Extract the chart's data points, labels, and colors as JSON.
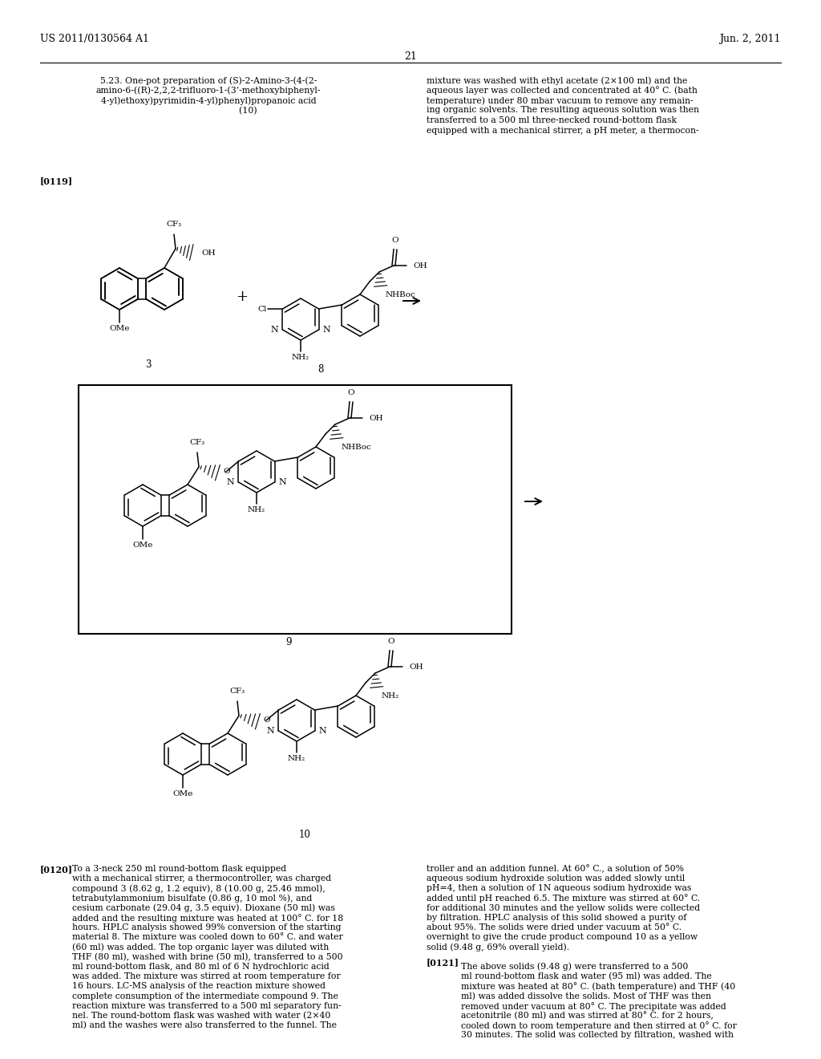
{
  "page_header_left": "US 2011/0130564 A1",
  "page_header_right": "Jun. 2, 2011",
  "page_number": "21",
  "section_title_lines": [
    "5.23. One-pot preparation of (S)-2-Amino-3-(4-(2-",
    "amino-6-((R)-2,2,2-trifluoro-1-(3’-methoxybiphenyl-",
    "4-yl)ethoxy)pyrimidin-4-yl)phenyl)propanoic acid",
    "                            (10)"
  ],
  "right_col_1_lines": [
    "mixture was washed with ethyl acetate (2×100 ml) and the",
    "aqueous layer was collected and concentrated at 40° C. (bath",
    "temperature) under 80 mbar vacuum to remove any remain-",
    "ing organic solvents. The resulting aqueous solution was then",
    "transferred to a 500 ml three-necked round-bottom flask",
    "equipped with a mechanical stirrer, a pH meter, a thermocon-"
  ],
  "para_0119": "[0119]",
  "para_0120": "[0120]",
  "para_0121": "[0121]",
  "left_col_2_lines": [
    "To a 3-neck 250 ml round-bottom flask equipped",
    "with a mechanical stirrer, a thermocontroller, was charged",
    "compound 3 (8.62 g, 1.2 equiv), 8 (10.00 g, 25.46 mmol),",
    "tetrabutylammonium bisulfate (0.86 g, 10 mol %), and",
    "cesium carbonate (29.04 g, 3.5 equiv). Dioxane (50 ml) was",
    "added and the resulting mixture was heated at 100° C. for 18",
    "hours. HPLC analysis showed 99% conversion of the starting",
    "material 8. The mixture was cooled down to 60° C. and water",
    "(60 ml) was added. The top organic layer was diluted with",
    "THF (80 ml), washed with brine (50 ml), transferred to a 500",
    "ml round-bottom flask, and 80 ml of 6 N hydrochloric acid",
    "was added. The mixture was stirred at room temperature for",
    "16 hours. LC-MS analysis of the reaction mixture showed",
    "complete consumption of the intermediate compound 9. The",
    "reaction mixture was transferred to a 500 ml separatory fun-",
    "nel. The round-bottom flask was washed with water (2×40",
    "ml) and the washes were also transferred to the funnel. The"
  ],
  "right_col_2_lines": [
    "troller and an addition funnel. At 60° C., a solution of 50%",
    "aqueous sodium hydroxide solution was added slowly until",
    "pH=4, then a solution of 1N aqueous sodium hydroxide was",
    "added until pH reached 6.5. The mixture was stirred at 60° C.",
    "for additional 30 minutes and the yellow solids were collected",
    "by filtration. HPLC analysis of this solid showed a purity of",
    "about 95%. The solids were dried under vacuum at 50° C.",
    "overnight to give the crude product compound 10 as a yellow",
    "solid (9.48 g, 69% overall yield)."
  ],
  "right_col_3_lines": [
    "The above solids (9.48 g) were transferred to a 500",
    "ml round-bottom flask and water (95 ml) was added. The",
    "mixture was heated at 80° C. (bath temperature) and THF (40",
    "ml) was added dissolve the solids. Most of THF was then",
    "removed under vacuum at 80° C. The precipitate was added",
    "acetonitrile (80 ml) and was stirred at 80° C. for 2 hours,",
    "cooled down to room temperature and then stirred at 0° C. for",
    "30 minutes. The solid was collected by filtration, washed with"
  ],
  "bg": "#ffffff",
  "tc": "#000000"
}
